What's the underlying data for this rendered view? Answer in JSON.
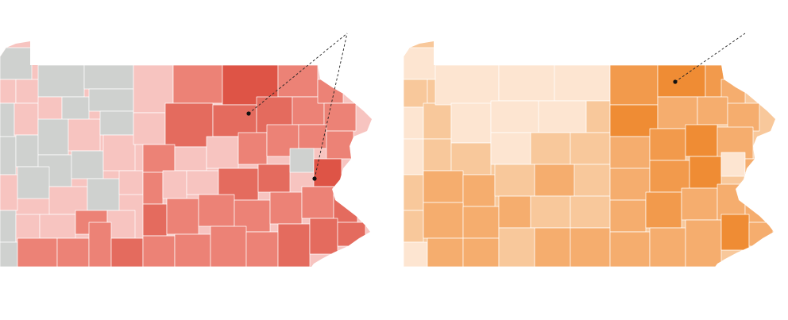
{
  "maps": [
    {
      "name": "left-map",
      "palette": [
        "#cfd1cf",
        "#f7c4c0",
        "#ec8276",
        "#e46b5e",
        "#de5446"
      ],
      "annotated_counties": 2
    },
    {
      "name": "right-map",
      "palette": [
        "#fde5d1",
        "#f8c89b",
        "#f5ad6e",
        "#f29a4c",
        "#ef8c34"
      ],
      "annotated_counties": 1
    }
  ]
}
